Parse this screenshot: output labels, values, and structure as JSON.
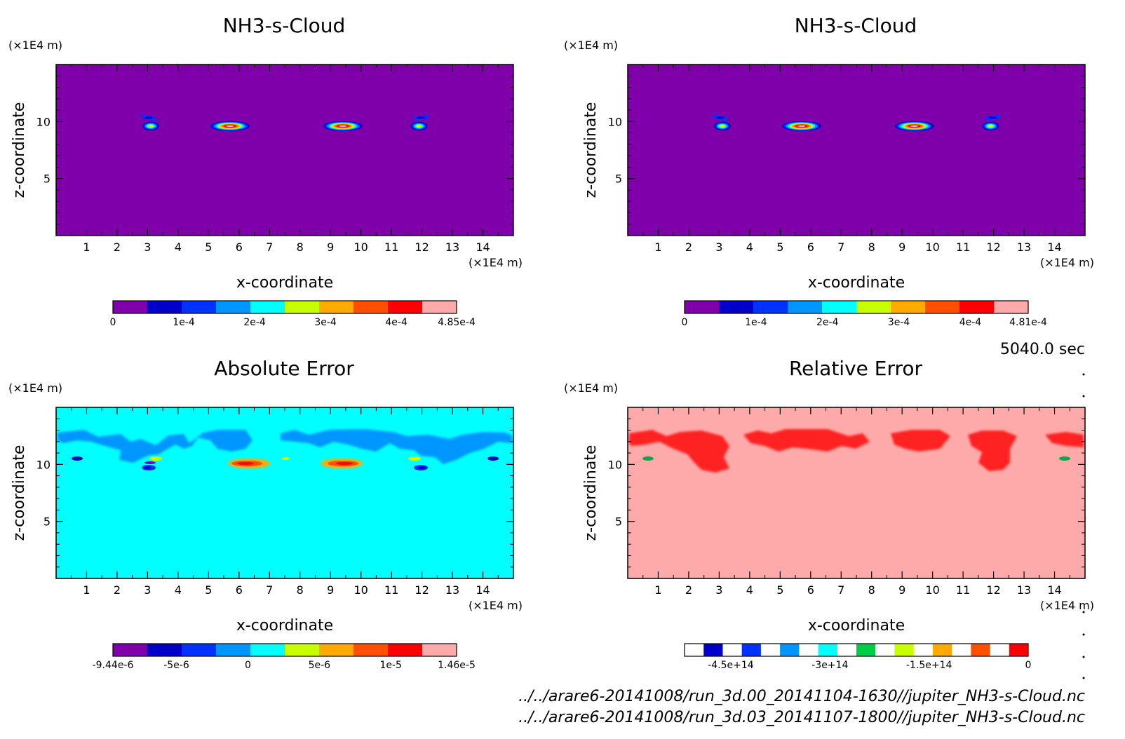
{
  "time_label": "5040.0 sec",
  "footer": {
    "file1": "../../arare6-20141008/run_3d.00_20141104-1630//jupiter_NH3-s-Cloud.nc",
    "file2": "../../arare6-20141008/run_3d.03_20141107-1800//jupiter_NH3-s-Cloud.nc"
  },
  "chart_data": [
    {
      "type": "heatmap",
      "title": "NH3-s-Cloud",
      "xlabel": "x-coordinate",
      "ylabel": "z-coordinate",
      "x_unit": "(×1E4 m)",
      "y_unit": "(×1E4 m)",
      "xlim": [
        0,
        15
      ],
      "ylim": [
        0,
        15
      ],
      "x_ticks": [
        1,
        2,
        3,
        4,
        5,
        6,
        7,
        8,
        9,
        10,
        11,
        12,
        13,
        14
      ],
      "y_ticks": [
        5,
        10
      ],
      "background_color": "#7f00aa",
      "features": [
        {
          "x": 3.1,
          "z": 9.6,
          "peak": 0.00025
        },
        {
          "x": 5.7,
          "z": 9.6,
          "peak": 0.000485
        },
        {
          "x": 9.4,
          "z": 9.6,
          "peak": 0.000485
        },
        {
          "x": 11.9,
          "z": 9.6,
          "peak": 0.00025
        }
      ],
      "colorbar": {
        "range": [
          0,
          0.000485
        ],
        "colors": [
          "#7f00aa",
          "#0000c8",
          "#0032ff",
          "#0096ff",
          "#00ffff",
          "#c8ff00",
          "#ffaa00",
          "#ff5000",
          "#ff0000",
          "#ffaaaa"
        ],
        "ticks": [
          0,
          0.0001,
          0.0002,
          0.0003,
          0.0004,
          0.000485
        ],
        "tick_labels": [
          "0",
          "1e-4",
          "2e-4",
          "3e-4",
          "4e-4",
          "4.85e-4"
        ]
      }
    },
    {
      "type": "heatmap",
      "title": "NH3-s-Cloud",
      "xlabel": "x-coordinate",
      "ylabel": "z-coordinate",
      "x_unit": "(×1E4 m)",
      "y_unit": "(×1E4 m)",
      "xlim": [
        0,
        15
      ],
      "ylim": [
        0,
        15
      ],
      "x_ticks": [
        1,
        2,
        3,
        4,
        5,
        6,
        7,
        8,
        9,
        10,
        11,
        12,
        13,
        14
      ],
      "y_ticks": [
        5,
        10
      ],
      "background_color": "#7f00aa",
      "features": [
        {
          "x": 3.1,
          "z": 9.6,
          "peak": 0.00025
        },
        {
          "x": 5.7,
          "z": 9.6,
          "peak": 0.000481
        },
        {
          "x": 9.4,
          "z": 9.6,
          "peak": 0.000481
        },
        {
          "x": 11.9,
          "z": 9.6,
          "peak": 0.00025
        }
      ],
      "colorbar": {
        "range": [
          0,
          0.000481
        ],
        "colors": [
          "#7f00aa",
          "#0000c8",
          "#0032ff",
          "#0096ff",
          "#00ffff",
          "#c8ff00",
          "#ffaa00",
          "#ff5000",
          "#ff0000",
          "#ffaaaa"
        ],
        "ticks": [
          0,
          0.0001,
          0.0002,
          0.0003,
          0.0004,
          0.000481
        ],
        "tick_labels": [
          "0",
          "1e-4",
          "2e-4",
          "3e-4",
          "4e-4",
          "4.81e-4"
        ]
      }
    },
    {
      "type": "heatmap",
      "title": "Absolute Error",
      "xlabel": "x-coordinate",
      "ylabel": "z-coordinate",
      "x_unit": "(×1E4 m)",
      "y_unit": "(×1E4 m)",
      "xlim": [
        0,
        15
      ],
      "ylim": [
        0,
        15
      ],
      "x_ticks": [
        1,
        2,
        3,
        4,
        5,
        6,
        7,
        8,
        9,
        10,
        11,
        12,
        13,
        14
      ],
      "y_ticks": [
        5,
        10
      ],
      "background_color": "#00ffff",
      "colorbar": {
        "range": [
          -9.44e-06,
          1.46e-05
        ],
        "colors": [
          "#7f00aa",
          "#0000c8",
          "#0032ff",
          "#0096ff",
          "#00ffff",
          "#c8ff00",
          "#ffaa00",
          "#ff5000",
          "#ff0000",
          "#ffaaaa"
        ],
        "ticks": [
          -9.44e-06,
          -5e-06,
          0,
          5e-06,
          1e-05,
          1.46e-05
        ],
        "tick_labels": [
          "-9.44e-6",
          "-5e-6",
          "0",
          "5e-6",
          "1e-5",
          "1.46e-5"
        ]
      }
    },
    {
      "type": "heatmap",
      "title": "Relative Error",
      "xlabel": "x-coordinate",
      "ylabel": "z-coordinate",
      "x_unit": "(×1E4 m)",
      "y_unit": "(×1E4 m)",
      "xlim": [
        0,
        15
      ],
      "ylim": [
        0,
        15
      ],
      "x_ticks": [
        1,
        2,
        3,
        4,
        5,
        6,
        7,
        8,
        9,
        10,
        11,
        12,
        13,
        14
      ],
      "y_ticks": [
        5,
        10
      ],
      "background_color": "#ffaaaa",
      "colorbar": {
        "range": [
          -520000000000000.0,
          0
        ],
        "colors": [
          "#ffffff",
          "#0000c8",
          "#ffffff",
          "#0032ff",
          "#ffffff",
          "#0096ff",
          "#ffffff",
          "#00ffff",
          "#ffffff",
          "#00cc44",
          "#ffffff",
          "#c8ff00",
          "#ffffff",
          "#ffaa00",
          "#ffffff",
          "#ff5000",
          "#ffffff",
          "#ff0000"
        ],
        "ticks": [
          -450000000000000.0,
          -300000000000000.0,
          -150000000000000.0,
          0
        ],
        "tick_labels": [
          "-4.5e+14",
          "-3e+14",
          "-1.5e+14",
          "0"
        ]
      }
    }
  ]
}
